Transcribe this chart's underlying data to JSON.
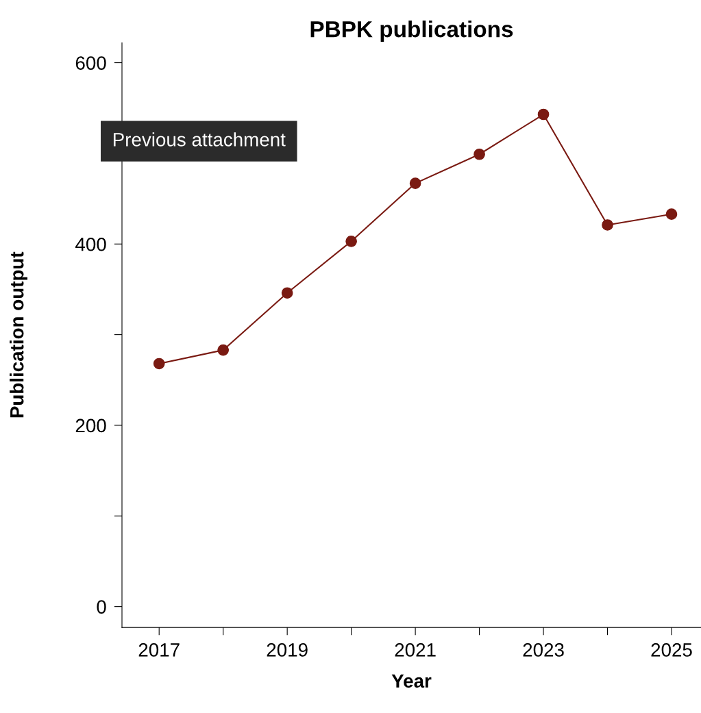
{
  "chart_data": {
    "type": "line",
    "title": "PBPK publications",
    "xlabel": "Year",
    "ylabel": "Publication output",
    "x": [
      2017,
      2018,
      2019,
      2020,
      2021,
      2022,
      2023,
      2024,
      2025
    ],
    "series": [
      {
        "color": "#7a1a12",
        "values": [
          268,
          283,
          346,
          403,
          467,
          499,
          543,
          421,
          433
        ]
      }
    ],
    "marker": "circle",
    "line_style": "solid",
    "grid": false,
    "legend": false,
    "xlim": [
      2016.42,
      2025.46
    ],
    "xticks": [
      2017,
      {
        "value": 2018,
        "label": null
      },
      2019,
      {
        "value": 2020,
        "label": null
      },
      2021,
      {
        "value": 2022,
        "label": null
      },
      2023,
      {
        "value": 2024,
        "label": null
      },
      2025
    ],
    "ylim": [
      -23,
      622
    ],
    "yticks": [
      0,
      {
        "value": 100,
        "label": null
      },
      200,
      {
        "value": 300,
        "label": null
      },
      400,
      {
        "value": 500,
        "label": null
      },
      600
    ],
    "annotations": [
      "Previous attachment"
    ]
  }
}
